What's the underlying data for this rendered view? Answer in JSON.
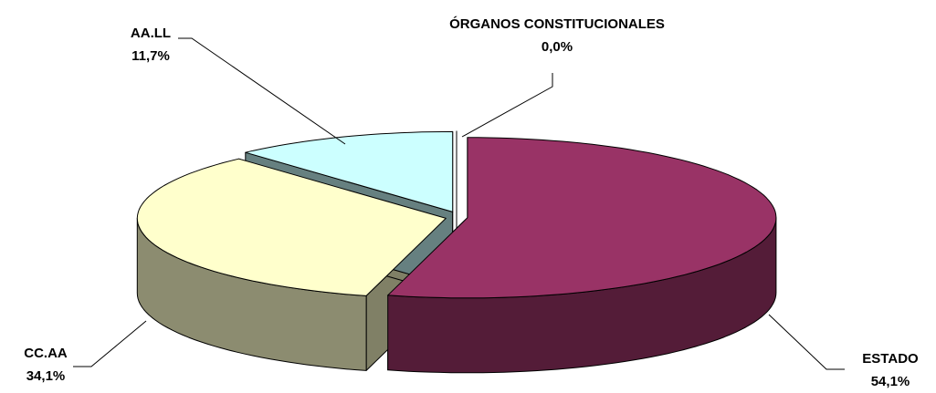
{
  "chart_data": {
    "type": "pie3d",
    "categories": [
      "ESTADO",
      "CC.AA",
      "AA.LL",
      "ÓRGANOS  CONSTITUCIONALES"
    ],
    "values": [
      54.1,
      34.1,
      11.7,
      0.0
    ],
    "value_labels": [
      "54,1%",
      "34,1%",
      "11,7%",
      "0,0%"
    ],
    "colors": [
      "#993366",
      "#ffffcc",
      "#ccffff",
      "#ffffff"
    ]
  }
}
